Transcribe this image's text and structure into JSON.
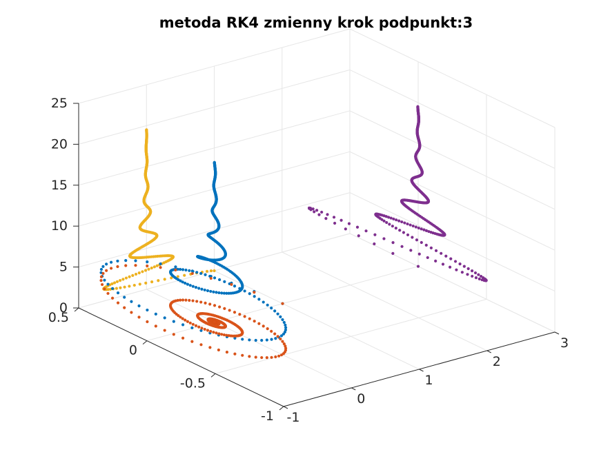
{
  "chart_data": {
    "type": "scatter3d",
    "title": "metoda RK4 zmienny krok podpunkt:3",
    "xlabel": "",
    "ylabel": "",
    "zlabel": "",
    "xlim": [
      -1,
      3
    ],
    "ylim": [
      -1,
      0.5
    ],
    "zlim": [
      0,
      25
    ],
    "xticks": [
      "-1",
      "0",
      "1",
      "2",
      "3"
    ],
    "yticks": [
      "-1",
      "-0.5",
      "0",
      "0.5"
    ],
    "zticks": [
      "0",
      "5",
      "10",
      "15",
      "20",
      "25"
    ],
    "grid": true,
    "legend": "none",
    "series": [
      {
        "color": "#0072BD",
        "description": "3D trajectory x(t), y(t), z(t)",
        "model": {
          "x": "cos(t)*exp(-0.15*t)",
          "y": "sin(t)*exp(-0.15*t)",
          "z": "0.5*t",
          "t_range": [
            0,
            39
          ]
        }
      },
      {
        "color": "#D95319",
        "description": "projection onto plane z = 0",
        "model": {
          "x": "cos(t)*exp(-0.15*t)",
          "y": "sin(t)*exp(-0.15*t)",
          "z": "0",
          "t_range": [
            0,
            39
          ]
        }
      },
      {
        "color": "#EDB120",
        "description": "projection onto plane y = 0.5",
        "model": {
          "x": "cos(t)*exp(-0.15*t)",
          "y": "0.5",
          "z": "0.5*t",
          "t_range": [
            0,
            39
          ]
        }
      },
      {
        "color": "#7E2F8E",
        "description": "projection onto plane x = 3",
        "model": {
          "x": "3",
          "y": "sin(t)*exp(-0.15*t)",
          "z": "0.5*t",
          "t_range": [
            0,
            39
          ]
        }
      }
    ]
  }
}
